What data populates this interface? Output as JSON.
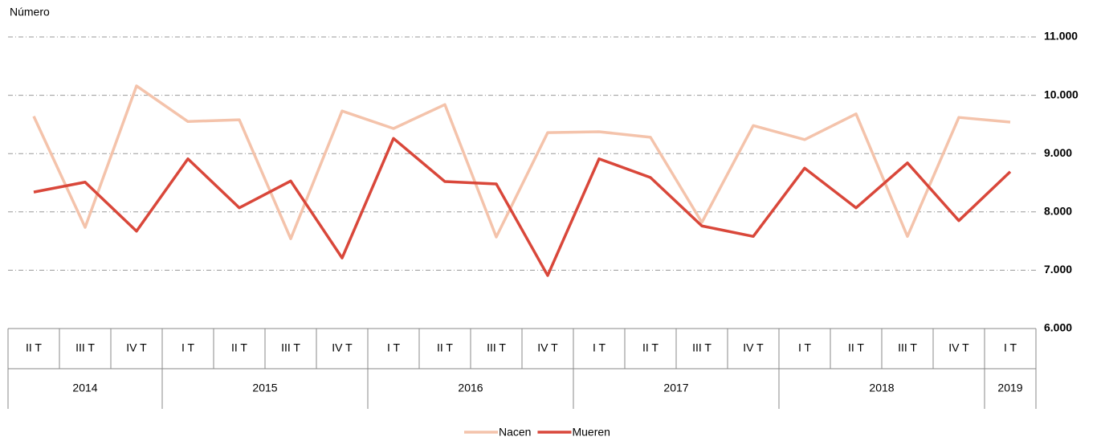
{
  "chart_data": {
    "type": "line",
    "y_axis_label": "Número",
    "categories": [
      "II T",
      "III T",
      "IV T",
      "I T",
      "II T",
      "III T",
      "IV T",
      "I T",
      "II T",
      "III T",
      "IV T",
      "I T",
      "II T",
      "III T",
      "IV T",
      "I T",
      "II T",
      "III T",
      "IV T",
      "I T"
    ],
    "groups": [
      {
        "name": "2014",
        "size": 3
      },
      {
        "name": "2015",
        "size": 4
      },
      {
        "name": "2016",
        "size": 4
      },
      {
        "name": "2017",
        "size": 4
      },
      {
        "name": "2018",
        "size": 4
      },
      {
        "name": "2019",
        "size": 1
      }
    ],
    "series": [
      {
        "name": "Nacen",
        "color": "#f4c3ab",
        "values": [
          9640,
          7735,
          10160,
          9550,
          9580,
          7540,
          9730,
          9430,
          9840,
          7570,
          9360,
          9375,
          9280,
          7820,
          9480,
          9240,
          9680,
          7580,
          9620,
          9540
        ]
      },
      {
        "name": "Mueren",
        "color": "#d9473a",
        "values": [
          8340,
          8510,
          7670,
          8910,
          8070,
          8530,
          7210,
          9260,
          8520,
          8480,
          6910,
          8910,
          8590,
          7760,
          7580,
          8750,
          8070,
          8840,
          7850,
          8690
        ]
      }
    ],
    "ylim": [
      6000,
      11000
    ],
    "yticks": [
      {
        "value": 6000,
        "label": "6.000"
      },
      {
        "value": 7000,
        "label": "7.000"
      },
      {
        "value": 8000,
        "label": "8.000"
      },
      {
        "value": 9000,
        "label": "9.000"
      },
      {
        "value": 10000,
        "label": "10.000"
      },
      {
        "value": 11000,
        "label": "11.000"
      }
    ],
    "grid": true,
    "legend": "bottom"
  }
}
